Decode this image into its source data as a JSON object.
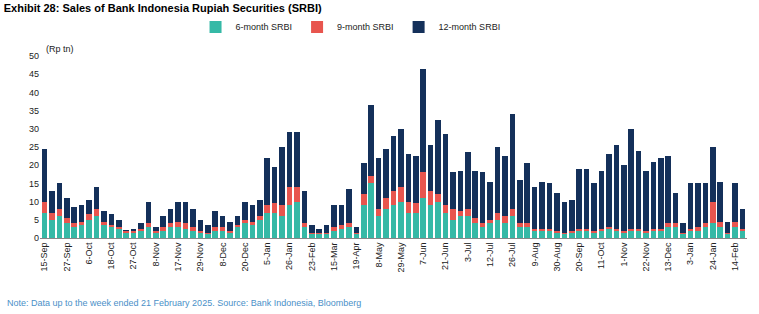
{
  "chart_data": {
    "type": "bar",
    "title": "Exhibit 28: Sales of Bank Indonesia Rupiah Securities (SRBI)",
    "y_label": "(Rp tn)",
    "note": "Note: Data up to the week ended 21 February 2025. Source: Bank Indonesia, Bloomberg",
    "stacked": true,
    "grid": false,
    "legend": "top",
    "ylim": [
      0,
      50
    ],
    "yticks": [
      0,
      5,
      10,
      15,
      20,
      25,
      30,
      35,
      40,
      45,
      50
    ],
    "categories": [
      "15-Sep",
      null,
      null,
      "27-Sep",
      null,
      null,
      "6-Oct",
      null,
      null,
      "18-Oct",
      null,
      null,
      "27-Oct",
      null,
      null,
      "8-Nov",
      null,
      null,
      "17-Nov",
      null,
      null,
      "29-Nov",
      null,
      null,
      "8-Dec",
      null,
      null,
      "20-Dec",
      null,
      null,
      "5-Jan",
      null,
      null,
      "26-Jan",
      null,
      null,
      "23-Feb",
      null,
      null,
      "15-Mar",
      null,
      null,
      "19-Apr",
      null,
      null,
      "8-May",
      null,
      null,
      "29-May",
      null,
      null,
      "7-Jun",
      null,
      null,
      "21-Jun",
      null,
      null,
      "3-Jul",
      null,
      null,
      "12-Jul",
      null,
      null,
      "26-Jul",
      null,
      null,
      "9-Aug",
      null,
      null,
      "30-Aug",
      null,
      null,
      "20-Sep",
      null,
      null,
      "11-Oct",
      null,
      null,
      "1-Nov",
      null,
      null,
      "22-Nov",
      null,
      null,
      "13-Dec",
      null,
      null,
      "3-Jan",
      null,
      null,
      "24-Jan",
      null,
      null,
      "14-Feb",
      null
    ],
    "series": [
      {
        "name": "6-month SRBI",
        "color": "#35b9a6",
        "values": [
          7,
          5,
          6,
          4,
          3,
          3.5,
          5,
          6,
          3.5,
          3,
          2.5,
          1.5,
          1.5,
          2,
          3,
          1.5,
          2,
          3,
          3,
          2.5,
          2,
          1.5,
          1,
          2,
          2,
          1.5,
          3,
          4,
          3.5,
          5,
          7,
          7,
          6,
          9,
          10,
          3,
          1,
          1,
          1,
          2,
          2.5,
          3,
          1,
          9,
          15,
          6,
          8,
          9,
          10,
          7,
          7,
          11,
          9,
          10,
          7,
          5,
          6,
          6,
          4,
          3,
          4,
          5,
          4,
          6,
          3,
          3,
          2,
          2,
          2,
          1.5,
          1,
          1.5,
          2,
          2,
          1.5,
          2,
          2.5,
          2,
          1.5,
          2,
          2,
          1.5,
          2,
          2,
          3,
          3,
          1,
          2,
          2,
          3,
          4,
          3,
          1,
          3,
          2
        ]
      },
      {
        "name": "9-month SRBI",
        "color": "#e8554e",
        "values": [
          3,
          2,
          2,
          1.5,
          1,
          1,
          1.5,
          2,
          1,
          0.5,
          0.5,
          0.3,
          0.5,
          0.5,
          1,
          0.5,
          1,
          1,
          1.5,
          1.5,
          1,
          0.5,
          0.5,
          1,
          1,
          0.5,
          0.5,
          1,
          1,
          1,
          2,
          2.5,
          3,
          5,
          4,
          1,
          0.5,
          0.5,
          0.5,
          1,
          1,
          1,
          0.5,
          3,
          2,
          2,
          3,
          4,
          4,
          3,
          2.5,
          7,
          4,
          2,
          2,
          3,
          1.5,
          2,
          1.5,
          1,
          1,
          2,
          2,
          2,
          1,
          1,
          0.5,
          0.5,
          0.5,
          0.5,
          0.5,
          0.5,
          0.5,
          0.5,
          0.5,
          0.5,
          0.5,
          0.5,
          0.5,
          0.5,
          0.5,
          0.5,
          0.5,
          0.5,
          1,
          1,
          0.5,
          0.5,
          1,
          1,
          6,
          1.5,
          0.5,
          1.5,
          0.5
        ]
      },
      {
        "name": "12-month SRBI",
        "color": "#14305a",
        "values": [
          14.5,
          6,
          7,
          5.5,
          4.5,
          4.5,
          4,
          6,
          3,
          3,
          2,
          0.5,
          0.5,
          1.5,
          6,
          1,
          3,
          4,
          5.5,
          6,
          5,
          3,
          2,
          4.5,
          3,
          2.5,
          2.5,
          5,
          4.5,
          4.5,
          13,
          10,
          16,
          15,
          15,
          9,
          2,
          1,
          2,
          6,
          5.5,
          9.5,
          1.5,
          8.5,
          19.5,
          14,
          13.5,
          15,
          16,
          13,
          13,
          28.5,
          12.5,
          20.5,
          19.5,
          10,
          11,
          15.5,
          13,
          14,
          10.5,
          18,
          16.5,
          26,
          12,
          16.5,
          11.5,
          13,
          12.5,
          10.5,
          8.5,
          8.5,
          16.5,
          16.5,
          13,
          16,
          20,
          23,
          18,
          27.5,
          21.5,
          16.5,
          18.5,
          19.5,
          18.5,
          8.5,
          2.5,
          12.5,
          12,
          11,
          15,
          11,
          3,
          10.5,
          5.5
        ]
      }
    ]
  }
}
